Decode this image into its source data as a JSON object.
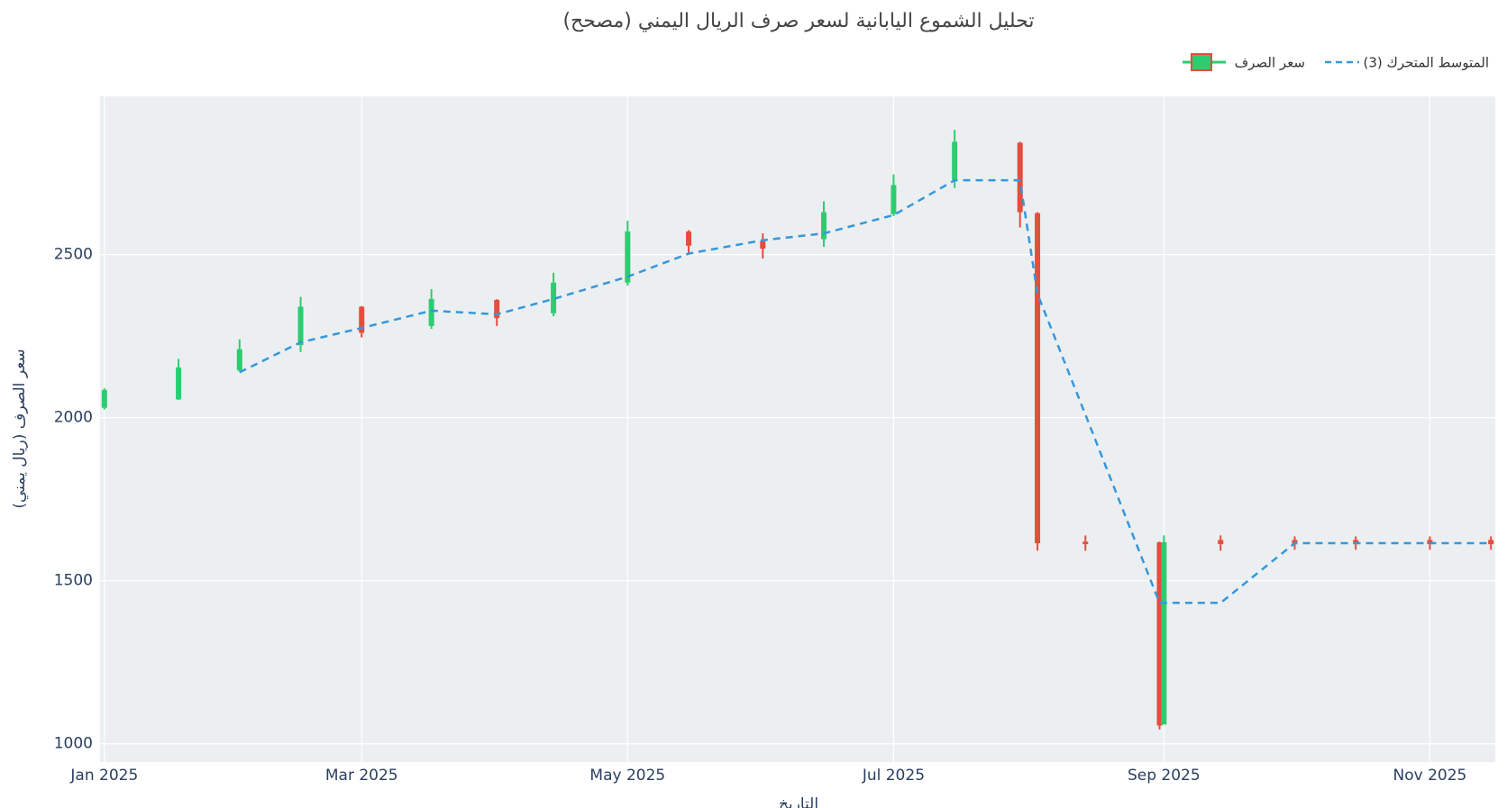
{
  "chart_data": {
    "type": "candlestick",
    "title": "تحليل الشموع اليابانية لسعر صرف الريال اليمني (مصحح)",
    "x_label": "التاريخ",
    "y_label": "سعر الصرف (ريال يمني)",
    "x": [
      "2025-01-01",
      "2025-01-18",
      "2025-02-01",
      "2025-02-15",
      "2025-03-01",
      "2025-03-17",
      "2025-04-01",
      "2025-04-14",
      "2025-05-01",
      "2025-05-15",
      "2025-06-01",
      "2025-06-15",
      "2025-07-01",
      "2025-07-15",
      "2025-07-30",
      "2025-08-03",
      "2025-08-14",
      "2025-08-31",
      "2025-09-01",
      "2025-09-14",
      "2025-10-01",
      "2025-10-15",
      "2025-11-01",
      "2025-11-15"
    ],
    "series": [
      {
        "name": "سعر الصرف",
        "increasing_color": "#2ecc71",
        "decreasing_color": "#e74c3c",
        "open": [
          2030,
          2056,
          2145,
          2222,
          2340,
          2281,
          2361,
          2320,
          2414,
          2571,
          2541,
          2547,
          2624,
          2728,
          2843,
          2627,
          1620,
          1618,
          1059,
          1625,
          1625,
          1625,
          1625,
          1625
        ],
        "high": [
          2090,
          2180,
          2240,
          2370,
          2342,
          2394,
          2363,
          2444,
          2604,
          2575,
          2565,
          2663,
          2746,
          2882,
          2846,
          2630,
          1639,
          1620,
          1639,
          1639,
          1636,
          1636,
          1636,
          1636
        ],
        "low": [
          2025,
          2054,
          2140,
          2201,
          2246,
          2272,
          2281,
          2311,
          2405,
          2500,
          2488,
          2524,
          2618,
          2704,
          2583,
          1592,
          1592,
          1044,
          1059,
          1592,
          1595,
          1595,
          1595,
          1595
        ],
        "close": [
          2085,
          2154,
          2210,
          2340,
          2260,
          2364,
          2305,
          2414,
          2571,
          2527,
          2518,
          2630,
          2713,
          2846,
          2630,
          1615,
          1612,
          1056,
          1618,
          1612,
          1612,
          1612,
          1612,
          1612
        ]
      },
      {
        "name": "المتوسط المتحرك (3)",
        "color": "#3498db",
        "dash": true,
        "values": [
          null,
          null,
          2139,
          2231,
          2275,
          2328,
          2317,
          2364,
          2432,
          2503,
          2544,
          2565,
          2621,
          2728,
          2728,
          2379,
          2009,
          1432,
          1432,
          1432,
          1615,
          1615,
          1615,
          1615
        ]
      }
    ],
    "xlim": [
      "2024-12-31",
      "2025-11-16"
    ],
    "xticks": [
      {
        "value": "2025-01-01",
        "label": "Jan 2025"
      },
      {
        "value": "2025-03-01",
        "label": "Mar 2025"
      },
      {
        "value": "2025-05-01",
        "label": "May 2025"
      },
      {
        "value": "2025-07-01",
        "label": "Jul 2025"
      },
      {
        "value": "2025-09-01",
        "label": "Sep 2025"
      },
      {
        "value": "2025-11-01",
        "label": "Nov 2025"
      }
    ],
    "ylim": [
      944,
      2985
    ],
    "yticks": [
      1000,
      1500,
      2000,
      2500
    ],
    "grid": true,
    "legend": "top-right"
  }
}
